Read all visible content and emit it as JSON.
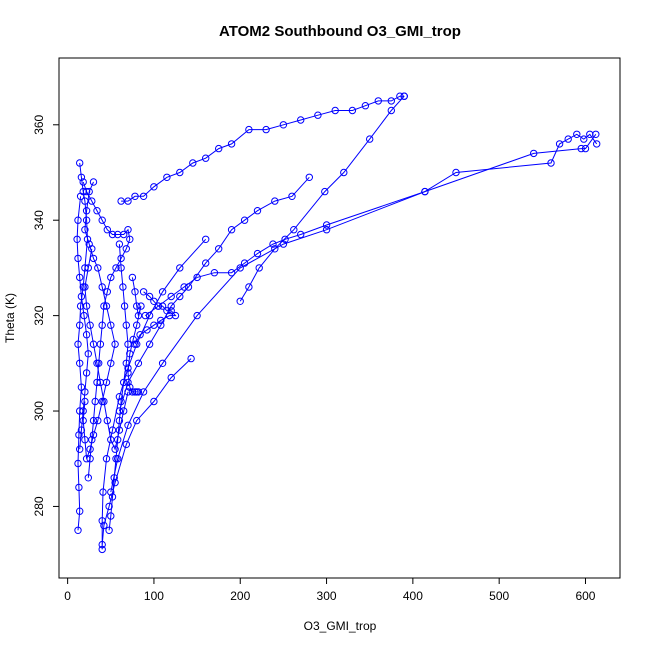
{
  "chart_data": {
    "type": "scatter",
    "title": "ATOM2 Southbound O3_GMI_trop",
    "xlabel": "O3_GMI_trop",
    "ylabel": "Theta (K)",
    "xlim": [
      -10,
      640
    ],
    "ylim": [
      265,
      374
    ],
    "x_ticks": [
      0,
      100,
      200,
      300,
      400,
      500,
      600
    ],
    "y_ticks": [
      280,
      300,
      320,
      340,
      360
    ],
    "grid": false,
    "legend": "none",
    "series_color": "#0000ff",
    "marker": "open-circle",
    "series": [
      {
        "mode": "lines+markers",
        "points": [
          [
            390,
            366
          ],
          [
            385,
            366
          ],
          [
            375,
            365
          ],
          [
            360,
            365
          ],
          [
            345,
            364
          ],
          [
            330,
            363
          ],
          [
            310,
            363
          ],
          [
            290,
            362
          ],
          [
            270,
            361
          ],
          [
            250,
            360
          ],
          [
            230,
            359
          ],
          [
            210,
            359
          ],
          [
            190,
            356
          ],
          [
            175,
            355
          ],
          [
            160,
            353
          ],
          [
            145,
            352
          ],
          [
            130,
            350
          ],
          [
            115,
            349
          ],
          [
            100,
            347
          ],
          [
            88,
            345
          ],
          [
            78,
            345
          ],
          [
            70,
            344
          ],
          [
            62,
            344
          ]
        ]
      },
      {
        "mode": "lines+markers",
        "points": [
          [
            390,
            366
          ],
          [
            375,
            363
          ],
          [
            350,
            357
          ],
          [
            320,
            350
          ],
          [
            298,
            346
          ],
          [
            262,
            338
          ],
          [
            240,
            334
          ],
          [
            222,
            330
          ],
          [
            210,
            326
          ],
          [
            200,
            323
          ]
        ]
      },
      {
        "mode": "lines+markers",
        "points": [
          [
            613,
            356
          ],
          [
            605,
            358
          ],
          [
            598,
            357
          ],
          [
            590,
            358
          ],
          [
            580,
            357
          ],
          [
            570,
            356
          ],
          [
            560,
            352
          ],
          [
            450,
            350
          ],
          [
            414,
            346
          ],
          [
            300,
            339
          ],
          [
            270,
            337
          ],
          [
            252,
            336
          ],
          [
            238,
            335
          ],
          [
            220,
            333
          ],
          [
            205,
            331
          ],
          [
            190,
            329
          ],
          [
            170,
            329
          ],
          [
            150,
            328
          ],
          [
            135,
            326
          ],
          [
            120,
            324
          ],
          [
            105,
            322
          ],
          [
            90,
            320
          ]
        ]
      },
      {
        "mode": "lines+markers",
        "points": [
          [
            612,
            358
          ],
          [
            600,
            355
          ],
          [
            595,
            355
          ],
          [
            540,
            354
          ],
          [
            414,
            346
          ],
          [
            300,
            338
          ],
          [
            250,
            335
          ],
          [
            200,
            330
          ],
          [
            150,
            320
          ],
          [
            110,
            310
          ],
          [
            88,
            304
          ],
          [
            70,
            297
          ],
          [
            58,
            290
          ],
          [
            50,
            283
          ]
        ]
      },
      {
        "mode": "lines+markers",
        "points": [
          [
            280,
            349
          ],
          [
            260,
            345
          ],
          [
            240,
            344
          ],
          [
            220,
            342
          ],
          [
            205,
            340
          ],
          [
            190,
            338
          ],
          [
            175,
            334
          ],
          [
            160,
            331
          ],
          [
            140,
            326
          ],
          [
            130,
            324
          ],
          [
            120,
            322
          ],
          [
            108,
            318
          ],
          [
            95,
            314
          ],
          [
            82,
            310
          ],
          [
            70,
            306
          ],
          [
            60,
            300
          ]
        ]
      },
      {
        "mode": "lines+markers",
        "points": [
          [
            143,
            311
          ],
          [
            120,
            307
          ],
          [
            100,
            302
          ],
          [
            80,
            298
          ],
          [
            68,
            293
          ],
          [
            55,
            285
          ],
          [
            48,
            280
          ],
          [
            42,
            276
          ],
          [
            40,
            272
          ]
        ]
      },
      {
        "mode": "lines+markers",
        "points": [
          [
            160,
            336
          ],
          [
            130,
            330
          ],
          [
            110,
            325
          ],
          [
            95,
            320
          ],
          [
            80,
            314
          ],
          [
            70,
            309
          ],
          [
            60,
            303
          ],
          [
            52,
            296
          ],
          [
            45,
            290
          ],
          [
            41,
            283
          ],
          [
            40,
            277
          ],
          [
            40,
            271
          ]
        ]
      },
      {
        "mode": "lines+markers",
        "points": [
          [
            14,
            352
          ],
          [
            16,
            349
          ],
          [
            18,
            346
          ],
          [
            20,
            344
          ],
          [
            22,
            340
          ],
          [
            23,
            336
          ],
          [
            20,
            330
          ],
          [
            18,
            326
          ],
          [
            15,
            322
          ],
          [
            14,
            318
          ],
          [
            12,
            314
          ],
          [
            14,
            310
          ],
          [
            16,
            305
          ],
          [
            14,
            300
          ],
          [
            13,
            295
          ],
          [
            12,
            289
          ],
          [
            13,
            284
          ],
          [
            14,
            279
          ],
          [
            12,
            275
          ]
        ]
      },
      {
        "mode": "lines+markers",
        "points": [
          [
            18,
            348
          ],
          [
            22,
            346
          ],
          [
            28,
            344
          ],
          [
            34,
            342
          ],
          [
            40,
            340
          ],
          [
            46,
            338
          ],
          [
            52,
            337
          ],
          [
            58,
            337
          ],
          [
            65,
            337
          ],
          [
            70,
            338
          ],
          [
            72,
            336
          ],
          [
            68,
            334
          ],
          [
            62,
            332
          ],
          [
            56,
            330
          ],
          [
            50,
            328
          ],
          [
            46,
            325
          ],
          [
            42,
            322
          ],
          [
            40,
            318
          ],
          [
            38,
            314
          ],
          [
            36,
            310
          ],
          [
            34,
            306
          ],
          [
            32,
            302
          ],
          [
            30,
            298
          ],
          [
            28,
            294
          ],
          [
            26,
            290
          ],
          [
            24,
            286
          ]
        ]
      },
      {
        "mode": "lines+markers",
        "points": [
          [
            60,
            335
          ],
          [
            62,
            330
          ],
          [
            64,
            326
          ],
          [
            66,
            322
          ],
          [
            68,
            318
          ],
          [
            70,
            314
          ],
          [
            68,
            310
          ],
          [
            65,
            306
          ],
          [
            62,
            302
          ],
          [
            60,
            298
          ],
          [
            58,
            294
          ],
          [
            56,
            290
          ],
          [
            54,
            286
          ],
          [
            52,
            282
          ],
          [
            50,
            278
          ],
          [
            48,
            275
          ]
        ]
      },
      {
        "mode": "lines+markers",
        "points": [
          [
            75,
            328
          ],
          [
            78,
            325
          ],
          [
            80,
            322
          ],
          [
            82,
            320
          ],
          [
            85,
            322
          ],
          [
            80,
            318
          ],
          [
            76,
            315
          ],
          [
            72,
            312
          ],
          [
            70,
            308
          ],
          [
            72,
            305
          ],
          [
            75,
            304
          ],
          [
            80,
            304
          ],
          [
            82,
            304
          ],
          [
            78,
            304
          ]
        ]
      },
      {
        "mode": "lines+markers",
        "points": [
          [
            30,
            348
          ],
          [
            25,
            346
          ],
          [
            22,
            342
          ],
          [
            20,
            338
          ],
          [
            25,
            335
          ],
          [
            30,
            332
          ],
          [
            35,
            330
          ],
          [
            40,
            326
          ],
          [
            45,
            322
          ],
          [
            50,
            318
          ],
          [
            55,
            314
          ],
          [
            50,
            310
          ],
          [
            45,
            306
          ],
          [
            40,
            302
          ],
          [
            35,
            298
          ],
          [
            30,
            295
          ],
          [
            26,
            292
          ],
          [
            22,
            290
          ],
          [
            20,
            294
          ],
          [
            18,
            298
          ],
          [
            20,
            302
          ]
        ]
      },
      {
        "mode": "lines+markers",
        "points": [
          [
            28,
            334
          ],
          [
            24,
            330
          ],
          [
            20,
            326
          ],
          [
            22,
            322
          ],
          [
            26,
            318
          ],
          [
            30,
            314
          ],
          [
            34,
            310
          ],
          [
            38,
            306
          ],
          [
            42,
            302
          ],
          [
            46,
            298
          ],
          [
            50,
            294
          ],
          [
            55,
            292
          ],
          [
            60,
            296
          ],
          [
            65,
            300
          ],
          [
            70,
            304
          ]
        ]
      },
      {
        "mode": "lines+markers",
        "points": [
          [
            88,
            325
          ],
          [
            95,
            324
          ],
          [
            100,
            323
          ],
          [
            105,
            322
          ],
          [
            110,
            322
          ],
          [
            115,
            321
          ],
          [
            120,
            321
          ],
          [
            125,
            320
          ],
          [
            118,
            320
          ],
          [
            108,
            319
          ],
          [
            100,
            318
          ],
          [
            92,
            317
          ],
          [
            84,
            316
          ],
          [
            78,
            314
          ]
        ]
      },
      {
        "mode": "lines+markers",
        "points": [
          [
            15,
            345
          ],
          [
            12,
            340
          ],
          [
            11,
            336
          ],
          [
            12,
            332
          ],
          [
            14,
            328
          ],
          [
            16,
            324
          ],
          [
            19,
            320
          ],
          [
            22,
            316
          ],
          [
            24,
            312
          ],
          [
            22,
            308
          ],
          [
            20,
            304
          ],
          [
            18,
            300
          ],
          [
            16,
            296
          ],
          [
            14,
            292
          ]
        ]
      }
    ]
  }
}
